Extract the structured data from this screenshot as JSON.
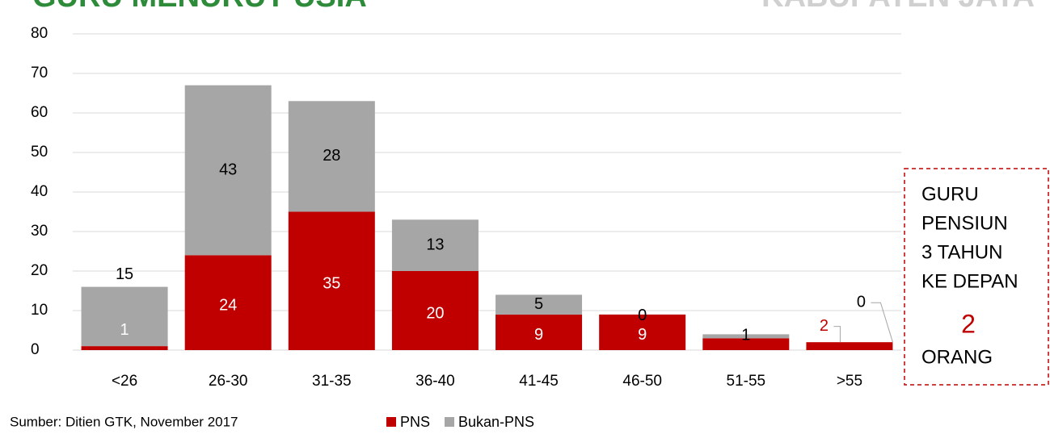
{
  "chart_data": {
    "type": "stacked_bar",
    "title": "GURU MENURUT USIA",
    "subtitle": "KABUPATEN JAYA",
    "categories": [
      "<26",
      "26-30",
      "31-35",
      "36-40",
      "41-45",
      "46-50",
      "51-55",
      ">55"
    ],
    "series": [
      {
        "name": "PNS",
        "color": "#c00000",
        "values": [
          1,
          24,
          35,
          20,
          9,
          9,
          3,
          2
        ],
        "value_labels": [
          "1",
          "24",
          "35",
          "20",
          "9",
          "9",
          null,
          "2"
        ]
      },
      {
        "name": "Bukan-PNS",
        "color": "#a6a6a6",
        "values": [
          15,
          43,
          28,
          13,
          5,
          0,
          1,
          0
        ]
      }
    ],
    "ylim": [
      0,
      80
    ],
    "yticks": [
      0,
      10,
      20,
      30,
      40,
      50,
      60,
      70,
      80
    ],
    "grid": true,
    "legend": "bottom",
    "callout": {
      "lines": [
        "GURU",
        "PENSIUN",
        "3 TAHUN",
        "KE DEPAN"
      ],
      "value": "2",
      "unit": "ORANG"
    },
    "source": "Sumber: Ditien GTK, November 2017"
  }
}
